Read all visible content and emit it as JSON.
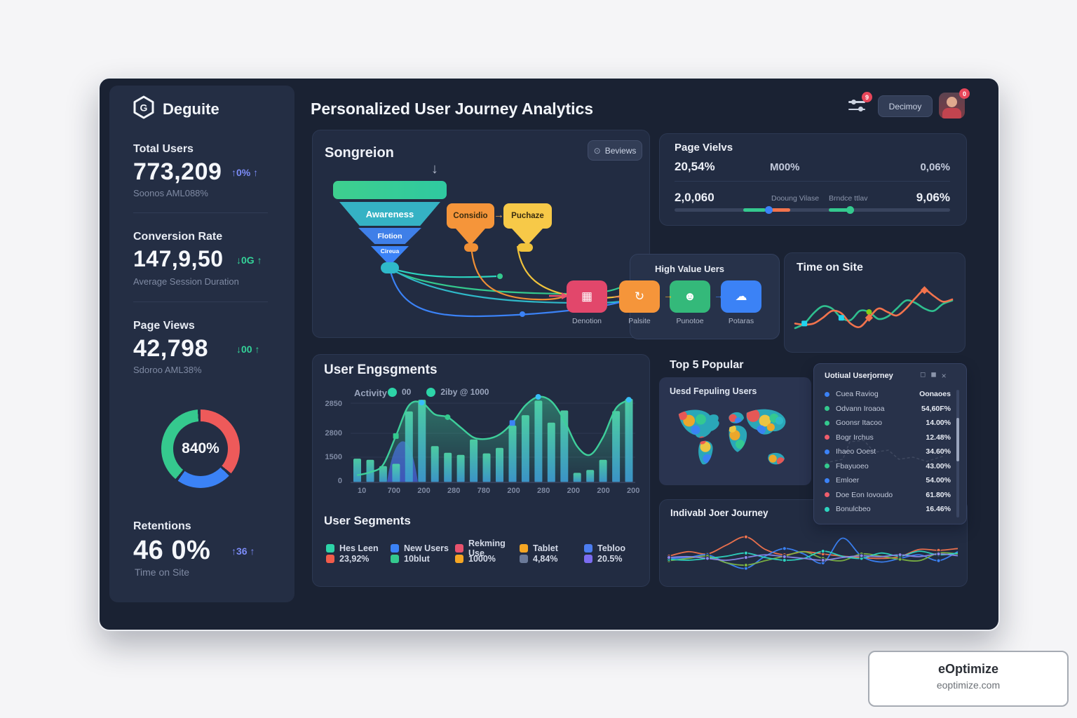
{
  "brand": {
    "name": "Deguite"
  },
  "header": {
    "title": "Personalized User Journey Analytics",
    "filter_badge": "9",
    "menu_button_label": "Decimoy",
    "avatar_badge": "0"
  },
  "sidebar": {
    "stats": [
      {
        "label": "Total Users",
        "value": "773,209",
        "delta": "↑0% ↑",
        "delta_color": "#7c8cf8",
        "sub": "Soonos AML088%"
      },
      {
        "label": "Conversion Rate",
        "value": "147,9,50",
        "delta": "↓0G ↑",
        "delta_color": "#34d399",
        "sub": "Average Session Duration"
      },
      {
        "label": "Page Views",
        "value": "42,798",
        "delta": "↓00 ↑",
        "delta_color": "#34d399",
        "sub": "Sdoroo AML38%"
      }
    ],
    "donut": {
      "center_label": "840%",
      "gap_color": "#242e44",
      "segments": [
        {
          "name": "red",
          "pct": 37,
          "color": "#ee5a5a"
        },
        {
          "name": "blue",
          "pct": 24,
          "color": "#3b82f6"
        },
        {
          "name": "green",
          "pct": 39,
          "color": "#35c98e"
        }
      ]
    },
    "retention": {
      "label": "Retentions",
      "value": "46 0%",
      "delta": "↑36 ↑",
      "delta_color": "#7c8cf8",
      "sub": "Time on Site"
    }
  },
  "funnel_card": {
    "title": "Songreion",
    "button_label": "Beviews",
    "stages": [
      {
        "label": "",
        "color": "#3ecf8e"
      },
      {
        "label": "Awareness",
        "color": "#35b2c4"
      },
      {
        "label": "Flotion",
        "color": "#3f7fe8"
      },
      {
        "label": "Cireua",
        "color": "#3b82f6"
      }
    ],
    "callouts": [
      {
        "label": "Considio",
        "color": "#f5953a"
      },
      {
        "label": "Puchaze",
        "color": "#f7c948"
      }
    ],
    "flow_panel_label": "High Value Uers",
    "flow_nodes": [
      {
        "label": "Denotion",
        "color": "#e2476b",
        "icon": "card-icon",
        "glyph": "▦"
      },
      {
        "label": "Palsite",
        "color": "#f5953a",
        "icon": "refresh-icon",
        "glyph": "↻"
      },
      {
        "label": "Punotoe",
        "color": "#34b97a",
        "icon": "user-icon",
        "glyph": "☻"
      },
      {
        "label": "Potaras",
        "color": "#3b82f6",
        "icon": "cloud-icon",
        "glyph": "☁"
      }
    ],
    "flow_arrows": [
      {
        "glyph": "→",
        "color": "#e8526d"
      },
      {
        "glyph": "→",
        "color": "#f0b429"
      },
      {
        "glyph": "→",
        "color": "#3b82f6"
      }
    ],
    "callout_arrow": {
      "glyph": "→",
      "color": "#e8a54b"
    },
    "down_arrow": "↓"
  },
  "pageviews_card": {
    "title": "Page Vielvs",
    "row1": {
      "left": "20,54%",
      "mid": "M00%",
      "right": "0,06%"
    },
    "row2": {
      "left": "2,0,060",
      "mid1": "Dooung Vilase",
      "mid2": "Brndce ttlav",
      "right": "9,06%"
    },
    "slider": {
      "track_color": "#39445e",
      "segments": [
        {
          "from": 25,
          "to": 33,
          "color": "#34c98e"
        },
        {
          "from": 35,
          "to": 42,
          "color": "#f2734d"
        },
        {
          "from": 56,
          "to": 63,
          "color": "#34c98e"
        }
      ],
      "dots": [
        {
          "at": 34,
          "color": "#3b82f6"
        },
        {
          "at": 63.5,
          "color": "#34c98e"
        }
      ]
    }
  },
  "timeonsite_card": {
    "title": "Time on Site"
  },
  "engagement_card": {
    "title": "User Engsgments",
    "legend_label": "Activity",
    "legend_items": [
      {
        "dot_color": "#2dd4a8",
        "label": "00"
      },
      {
        "dot_color": "#2dd4a8",
        "label": "2iby @ 1000"
      }
    ],
    "segments_title": "User Segments",
    "segments_row1": [
      {
        "color": "#2dd4a8",
        "label": "Hes Leen"
      },
      {
        "color": "#3b82f6",
        "label": "New Users"
      },
      {
        "color": "#e8526d",
        "label": "Rekming Use"
      },
      {
        "color": "#f5a623",
        "label": "Tablet"
      },
      {
        "color": "#4c7df0",
        "label": "Tebloo"
      }
    ],
    "segments_row2": [
      {
        "color": "#f25c4a",
        "label": "23,92%"
      },
      {
        "color": "#34c98e",
        "label": "10blut"
      },
      {
        "color": "#f5a623",
        "label": "1000%"
      },
      {
        "color": "#6b7a99",
        "label": "4,84%"
      },
      {
        "color": "#7b6cf0",
        "label": "20.5%"
      }
    ]
  },
  "map_card": {
    "heading": "Top 5 Popular",
    "title": "Uesd Fepuling Users",
    "base_color": "#2aa7b8",
    "patches": [
      [
        30,
        30,
        9,
        "#f5a623"
      ],
      [
        20,
        22,
        7,
        "#ef5350"
      ],
      [
        48,
        28,
        8,
        "#35c98e"
      ],
      [
        40,
        44,
        7,
        "#3b82f6"
      ],
      [
        55,
        70,
        8,
        "#f5c63c"
      ],
      [
        58,
        88,
        7,
        "#3b82f6"
      ],
      [
        50,
        60,
        6,
        "#ef5350"
      ],
      [
        97,
        26,
        6,
        "#ef5350"
      ],
      [
        105,
        30,
        5,
        "#3b82f6"
      ],
      [
        100,
        52,
        8,
        "#f5a623"
      ],
      [
        108,
        66,
        7,
        "#35c98e"
      ],
      [
        96,
        42,
        6,
        "#f5c63c"
      ],
      [
        128,
        22,
        10,
        "#ef5350"
      ],
      [
        146,
        30,
        9,
        "#f5c63c"
      ],
      [
        160,
        26,
        7,
        "#35c98e"
      ],
      [
        140,
        44,
        7,
        "#3b82f6"
      ],
      [
        155,
        40,
        6,
        "#f5a623"
      ],
      [
        168,
        30,
        6,
        "#2fb9c9"
      ],
      [
        158,
        88,
        6,
        "#f5a623"
      ],
      [
        170,
        92,
        6,
        "#ef5350"
      ]
    ]
  },
  "journey_panel": {
    "title": "Uotiual Userjorney",
    "icons": [
      "◻",
      "◼",
      "×"
    ],
    "rows": [
      {
        "color": "#3b82f6",
        "label": "Cuea Raviog",
        "value": "Oonaoes"
      },
      {
        "color": "#34c98e",
        "label": "Odvann Iroaoa",
        "value": "54,60F%"
      },
      {
        "color": "#34c98e",
        "label": "Goonsr Itacoo",
        "value": "14.00%"
      },
      {
        "color": "#ef5d6c",
        "label": "Bogr Irchus",
        "value": "12.48%"
      },
      {
        "color": "#3b82f6",
        "label": "Ihaeo Ooest",
        "value": "34.60%"
      },
      {
        "color": "#34c98e",
        "label": "Fbayuoeo",
        "value": "43.00%"
      },
      {
        "color": "#3b82f6",
        "label": "Emloer",
        "value": "54.00%"
      },
      {
        "color": "#ef5d6c",
        "label": "Doe Eon Iovoudo",
        "value": "61.80%"
      },
      {
        "color": "#2dd4bf",
        "label": "Bonulcbeo",
        "value": "16.46%"
      }
    ]
  },
  "journey_card": {
    "title": "Indivabl Joer Journey"
  },
  "watermark": {
    "title": "eOptimize",
    "subtitle": "eoptimize.com"
  },
  "chart_data": [
    {
      "type": "pie",
      "variant": "donut",
      "title": "Retentions donut",
      "center_label": "840%",
      "slices": [
        {
          "label": "red",
          "value": 37,
          "color": "#ee5a5a"
        },
        {
          "label": "blue",
          "value": 24,
          "color": "#3b82f6"
        },
        {
          "label": "green",
          "value": 39,
          "color": "#35c98e"
        }
      ]
    },
    {
      "type": "bar",
      "title": "User Engsgments",
      "legend": [
        "00",
        "2iby @ 1000"
      ],
      "y_ticks": [
        "2850",
        "2800",
        "1500",
        "0"
      ],
      "x_ticks": [
        "10",
        "700",
        "200",
        "280",
        "780",
        "200",
        "280",
        "200",
        "200",
        "200"
      ],
      "ylim": [
        0,
        2950
      ],
      "bar_values": [
        820,
        780,
        560,
        640,
        2450,
        2850,
        1250,
        1020,
        950,
        1480,
        1000,
        1190,
        1960,
        2320,
        2820,
        2060,
        2480,
        330,
        430,
        780,
        2460,
        2880
      ],
      "line_values": [
        250,
        350,
        600,
        1600,
        2650,
        2750,
        2350,
        2250,
        1900,
        1550,
        1500,
        1650,
        2050,
        2650,
        2950,
        2800,
        2150,
        1250,
        950,
        1550,
        2550,
        2850
      ],
      "bar_color_top": "#4fd6a8",
      "bar_color_bottom": "#3d9bd1",
      "line_color": "#3ecf9b",
      "markers": [
        {
          "i": 3,
          "shape": "square",
          "color": "#34c98e"
        },
        {
          "i": 5,
          "shape": "circle",
          "color": "#38bdf8"
        },
        {
          "i": 7,
          "shape": "circle",
          "color": "#34c98e"
        },
        {
          "i": 12,
          "shape": "square",
          "color": "#3b82f6"
        },
        {
          "i": 14,
          "shape": "circle",
          "color": "#38bdf8"
        },
        {
          "i": 21,
          "shape": "circle",
          "color": "#38bdf8"
        }
      ]
    },
    {
      "type": "line",
      "title": "Time on Site",
      "series": [
        {
          "name": "green",
          "color": "#2fbf8f",
          "values": [
            22,
            30,
            48,
            60,
            56,
            40,
            36,
            52,
            50,
            38,
            42,
            56,
            70,
            66,
            56,
            52,
            64,
            70
          ]
        },
        {
          "name": "orange",
          "color": "#f2734d",
          "values": [
            30,
            28,
            30,
            40,
            52,
            48,
            30,
            24,
            40,
            56,
            50,
            44,
            56,
            74,
            88,
            78,
            68,
            72
          ]
        }
      ],
      "markers": [
        {
          "series": 0,
          "i": 1,
          "shape": "square",
          "color": "#22d3ee"
        },
        {
          "series": 0,
          "i": 5,
          "shape": "square",
          "color": "#22d3ee"
        },
        {
          "series": 0,
          "i": 8,
          "shape": "circle",
          "color": "#84cc16"
        },
        {
          "series": 1,
          "i": 8,
          "shape": "diamond",
          "color": "#f2734d"
        },
        {
          "series": 1,
          "i": 14,
          "shape": "diamond",
          "color": "#f2734d"
        }
      ]
    },
    {
      "type": "line",
      "title": "Indivabl Joer Journey",
      "series": [
        {
          "name": "orange",
          "color": "#f2734d",
          "values": [
            45,
            55,
            50,
            70,
            88,
            60,
            48,
            55,
            50,
            45,
            42,
            40,
            44,
            60,
            58,
            62
          ]
        },
        {
          "name": "blue",
          "color": "#3b82f6",
          "values": [
            40,
            42,
            48,
            30,
            18,
            45,
            62,
            50,
            30,
            85,
            45,
            32,
            40,
            48,
            35,
            55
          ]
        },
        {
          "name": "green",
          "color": "#7cb342",
          "values": [
            35,
            40,
            45,
            30,
            25,
            35,
            45,
            55,
            40,
            35,
            50,
            45,
            38,
            35,
            52,
            50
          ]
        },
        {
          "name": "teal",
          "color": "#2dd4bf",
          "values": [
            38,
            36,
            40,
            45,
            52,
            42,
            36,
            40,
            56,
            45,
            40,
            52,
            45,
            56,
            48,
            52
          ]
        },
        {
          "name": "purple",
          "color": "#8b87e8",
          "values": [
            42,
            44,
            40,
            36,
            42,
            48,
            44,
            40,
            36,
            42,
            46,
            44,
            48,
            44,
            50,
            46
          ]
        }
      ]
    }
  ]
}
